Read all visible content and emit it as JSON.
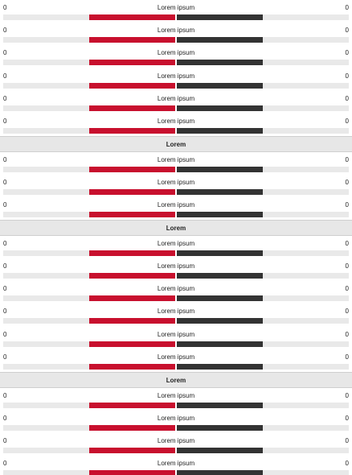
{
  "colors": {
    "leading": "#c8102e",
    "trailing": "#333333"
  },
  "sections": [
    {
      "title": "",
      "rows": [
        {
          "name": "Lorem ipsum",
          "home": "0",
          "away": "0",
          "home_frac": 0.5
        },
        {
          "name": "Lorem ipsum",
          "home": "0",
          "away": "0",
          "home_frac": 0.5
        },
        {
          "name": "Lorem ipsum",
          "home": "0",
          "away": "0",
          "home_frac": 0.5
        },
        {
          "name": "Lorem ipsum",
          "home": "0",
          "away": "0",
          "home_frac": 0.5
        },
        {
          "name": "Lorem ipsum",
          "home": "0",
          "away": "0",
          "home_frac": 0.5
        },
        {
          "name": "Lorem ipsum",
          "home": "0",
          "away": "0",
          "home_frac": 0.5
        }
      ]
    },
    {
      "title": "Lorem",
      "rows": [
        {
          "name": "Lorem ipsum",
          "home": "0",
          "away": "0",
          "home_frac": 0.5
        },
        {
          "name": "Lorem ipsum",
          "home": "0",
          "away": "0",
          "home_frac": 0.5
        },
        {
          "name": "Lorem ipsum",
          "home": "0",
          "away": "0",
          "home_frac": 0.5
        }
      ]
    },
    {
      "title": "Lorem",
      "rows": [
        {
          "name": "Lorem ipsum",
          "home": "0",
          "away": "0",
          "home_frac": 0.5
        },
        {
          "name": "Lorem ipsum",
          "home": "0",
          "away": "0",
          "home_frac": 0.5
        },
        {
          "name": "Lorem ipsum",
          "home": "0",
          "away": "0",
          "home_frac": 0.5
        },
        {
          "name": "Lorem ipsum",
          "home": "0",
          "away": "0",
          "home_frac": 0.5
        },
        {
          "name": "Lorem ipsum",
          "home": "0",
          "away": "0",
          "home_frac": 0.5
        },
        {
          "name": "Lorem ipsum",
          "home": "0",
          "away": "0",
          "home_frac": 0.5
        }
      ]
    },
    {
      "title": "Lorem",
      "rows": [
        {
          "name": "Lorem ipsum",
          "home": "0",
          "away": "0",
          "home_frac": 0.5
        },
        {
          "name": "Lorem ipsum",
          "home": "0",
          "away": "0",
          "home_frac": 0.5
        },
        {
          "name": "Lorem ipsum",
          "home": "0",
          "away": "0",
          "home_frac": 0.5
        },
        {
          "name": "Lorem ipsum",
          "home": "0",
          "away": "0",
          "home_frac": 0.5
        }
      ]
    }
  ]
}
